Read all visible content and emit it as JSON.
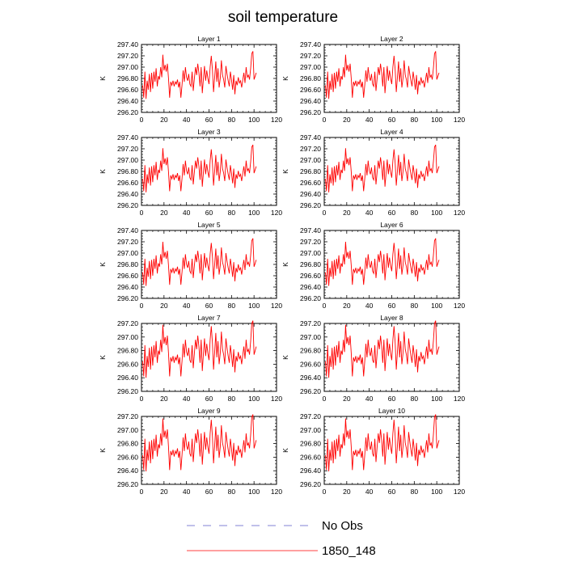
{
  "chart_data": {
    "type": "line",
    "title": "soil temperature",
    "x_ticks": [
      "0",
      "20",
      "40",
      "60",
      "80",
      "100",
      "120"
    ],
    "xlim": [
      0,
      120
    ],
    "legend": {
      "placement": "bottom-center",
      "entries": [
        {
          "label": "No Obs",
          "color": "#5a5ac8",
          "style": "dashed"
        },
        {
          "label": "1850_148",
          "color": "#ff0000",
          "style": "solid"
        }
      ]
    },
    "series_color": "#ff0000",
    "panels": [
      {
        "title": "Layer 1",
        "ylabel": "K",
        "ylim": [
          296.2,
          297.4
        ],
        "y_ticks": [
          "296.20",
          "296.40",
          "296.60",
          "296.80",
          "297.00",
          "297.20",
          "297.40"
        ],
        "y_offset": 0.04
      },
      {
        "title": "Layer 2",
        "ylabel": "K",
        "ylim": [
          296.2,
          297.4
        ],
        "y_ticks": [
          "296.20",
          "296.40",
          "296.60",
          "296.80",
          "297.00",
          "297.20",
          "297.40"
        ],
        "y_offset": 0.04
      },
      {
        "title": "Layer 3",
        "ylabel": "K",
        "ylim": [
          296.2,
          297.4
        ],
        "y_ticks": [
          "296.20",
          "296.40",
          "296.60",
          "296.80",
          "297.00",
          "297.20",
          "297.40"
        ],
        "y_offset": 0.03
      },
      {
        "title": "Layer 4",
        "ylabel": "K",
        "ylim": [
          296.2,
          297.4
        ],
        "y_ticks": [
          "296.20",
          "296.40",
          "296.60",
          "296.80",
          "297.00",
          "297.20",
          "297.40"
        ],
        "y_offset": 0.03
      },
      {
        "title": "Layer 5",
        "ylabel": "K",
        "ylim": [
          296.2,
          297.4
        ],
        "y_ticks": [
          "296.20",
          "296.40",
          "296.60",
          "296.80",
          "297.00",
          "297.20",
          "297.40"
        ],
        "y_offset": 0.02
      },
      {
        "title": "Layer 6",
        "ylabel": "K",
        "ylim": [
          296.2,
          297.4
        ],
        "y_ticks": [
          "296.20",
          "296.40",
          "296.60",
          "296.80",
          "297.00",
          "297.20",
          "297.40"
        ],
        "y_offset": 0.02
      },
      {
        "title": "Layer 7",
        "ylabel": "K",
        "ylim": [
          296.2,
          297.2
        ],
        "y_ticks": [
          "296.20",
          "296.40",
          "296.60",
          "296.80",
          "297.00",
          "297.20"
        ],
        "y_offset": 0.0
      },
      {
        "title": "Layer 8",
        "ylabel": "K",
        "ylim": [
          296.2,
          297.2
        ],
        "y_ticks": [
          "296.20",
          "296.40",
          "296.60",
          "296.80",
          "297.00",
          "297.20"
        ],
        "y_offset": 0.0
      },
      {
        "title": "Layer 9",
        "ylabel": "K",
        "ylim": [
          296.2,
          297.2
        ],
        "y_ticks": [
          "296.20",
          "296.40",
          "296.60",
          "296.80",
          "297.00",
          "297.20"
        ],
        "y_offset": -0.01
      },
      {
        "title": "Layer 10",
        "ylabel": "K",
        "ylim": [
          296.2,
          297.2
        ],
        "y_ticks": [
          "296.20",
          "296.40",
          "296.60",
          "296.80",
          "297.00",
          "297.20"
        ],
        "y_offset": -0.01
      }
    ],
    "series_base": [
      [
        1,
        296.64
      ],
      [
        2,
        296.42
      ],
      [
        3,
        296.88
      ],
      [
        4,
        296.4
      ],
      [
        5,
        296.72
      ],
      [
        6,
        296.56
      ],
      [
        7,
        296.84
      ],
      [
        8,
        296.52
      ],
      [
        9,
        296.86
      ],
      [
        10,
        296.58
      ],
      [
        11,
        296.88
      ],
      [
        12,
        296.7
      ],
      [
        13,
        296.94
      ],
      [
        14,
        296.62
      ],
      [
        15,
        296.8
      ],
      [
        16,
        296.74
      ],
      [
        17,
        296.96
      ],
      [
        18,
        296.78
      ],
      [
        19,
        297.18
      ],
      [
        20,
        296.9
      ],
      [
        21,
        297.0
      ],
      [
        22,
        296.88
      ],
      [
        23,
        297.02
      ],
      [
        24,
        296.76
      ],
      [
        25,
        296.42
      ],
      [
        26,
        296.7
      ],
      [
        27,
        296.64
      ],
      [
        28,
        296.72
      ],
      [
        29,
        296.62
      ],
      [
        30,
        296.7
      ],
      [
        31,
        296.66
      ],
      [
        32,
        296.74
      ],
      [
        33,
        296.6
      ],
      [
        34,
        296.7
      ],
      [
        35,
        296.42
      ],
      [
        36,
        296.64
      ],
      [
        37,
        296.9
      ],
      [
        38,
        296.7
      ],
      [
        39,
        296.96
      ],
      [
        40,
        296.78
      ],
      [
        41,
        296.72
      ],
      [
        42,
        296.84
      ],
      [
        43,
        296.66
      ],
      [
        44,
        296.62
      ],
      [
        45,
        296.88
      ],
      [
        46,
        296.54
      ],
      [
        47,
        296.76
      ],
      [
        48,
        296.96
      ],
      [
        49,
        296.82
      ],
      [
        50,
        297.02
      ],
      [
        51,
        296.86
      ],
      [
        52,
        296.62
      ],
      [
        53,
        296.96
      ],
      [
        54,
        296.5
      ],
      [
        55,
        296.74
      ],
      [
        56,
        296.98
      ],
      [
        57,
        296.72
      ],
      [
        58,
        296.9
      ],
      [
        59,
        296.76
      ],
      [
        60,
        296.66
      ],
      [
        61,
        296.96
      ],
      [
        62,
        297.16
      ],
      [
        63,
        296.92
      ],
      [
        64,
        296.52
      ],
      [
        65,
        296.78
      ],
      [
        66,
        297.06
      ],
      [
        67,
        296.7
      ],
      [
        68,
        296.94
      ],
      [
        69,
        296.6
      ],
      [
        70,
        296.76
      ],
      [
        71,
        297.08
      ],
      [
        72,
        296.82
      ],
      [
        73,
        296.74
      ],
      [
        74,
        296.6
      ],
      [
        75,
        296.98
      ],
      [
        76,
        296.84
      ],
      [
        77,
        296.72
      ],
      [
        78,
        296.62
      ],
      [
        79,
        296.88
      ],
      [
        80,
        296.74
      ],
      [
        81,
        296.56
      ],
      [
        82,
        296.82
      ],
      [
        83,
        296.48
      ],
      [
        84,
        296.72
      ],
      [
        85,
        296.64
      ],
      [
        86,
        296.78
      ],
      [
        87,
        296.68
      ],
      [
        88,
        296.72
      ],
      [
        89,
        296.6
      ],
      [
        90,
        296.74
      ],
      [
        91,
        296.86
      ],
      [
        92,
        296.68
      ],
      [
        93,
        296.96
      ],
      [
        94,
        296.78
      ],
      [
        95,
        296.82
      ],
      [
        96,
        296.74
      ],
      [
        97,
        296.94
      ],
      [
        98,
        297.2
      ],
      [
        99,
        297.24
      ],
      [
        100,
        296.74
      ],
      [
        101,
        296.8
      ],
      [
        102,
        296.86
      ]
    ]
  }
}
